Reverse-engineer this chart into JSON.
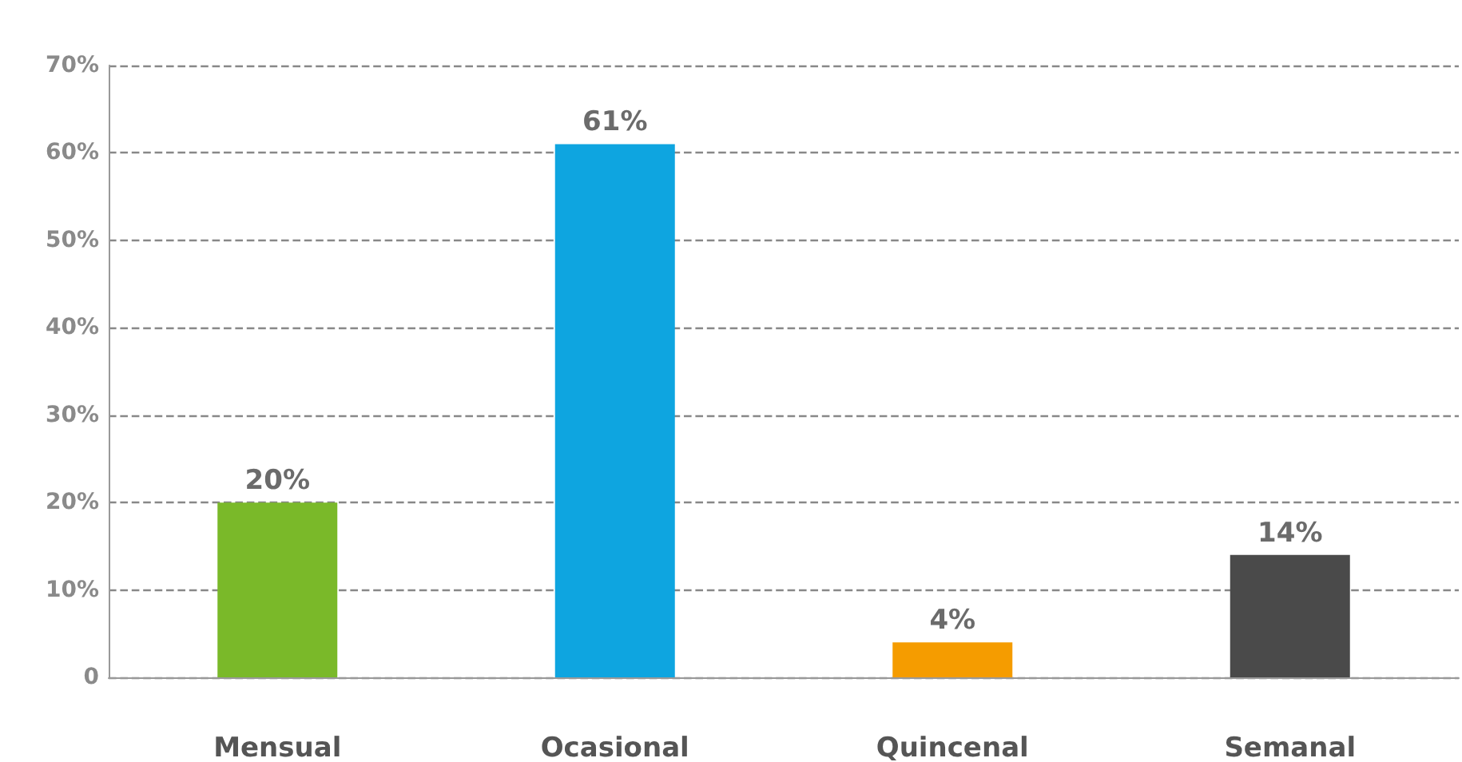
{
  "chart_data": {
    "type": "bar",
    "categories": [
      "Mensual",
      "Ocasional",
      "Quincenal",
      "Semanal"
    ],
    "values": [
      20,
      61,
      4,
      14
    ],
    "colors": [
      "#7ab929",
      "#0ea5e0",
      "#f59c00",
      "#4a4a4a"
    ],
    "ylim": [
      0,
      70
    ],
    "yticks": [
      {
        "value": 0,
        "label": "0"
      },
      {
        "value": 10,
        "label": "10%"
      },
      {
        "value": 20,
        "label": "20%"
      },
      {
        "value": 30,
        "label": "30%"
      },
      {
        "value": 40,
        "label": "40%"
      },
      {
        "value": 50,
        "label": "50%"
      },
      {
        "value": 60,
        "label": "60%"
      },
      {
        "value": 70,
        "label": "70%"
      }
    ],
    "value_labels": [
      "20%",
      "61%",
      "4%",
      "14%"
    ],
    "grid": "y"
  }
}
